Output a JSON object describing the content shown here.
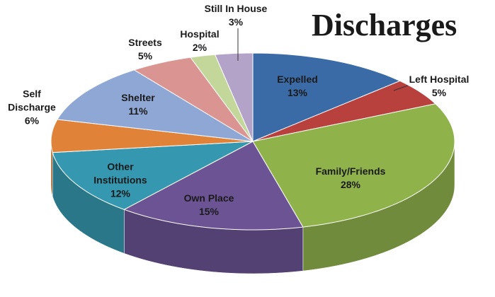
{
  "chart_data": {
    "type": "pie",
    "title": "Discharges",
    "categories": [
      "Expelled",
      "Left Hospital",
      "Family/Friends",
      "Own Place",
      "Other Institutions",
      "Self Discharge",
      "Shelter",
      "Streets",
      "Hospital",
      "Still In House"
    ],
    "values": [
      13,
      5,
      28,
      15,
      12,
      6,
      11,
      5,
      2,
      3
    ],
    "value_labels": [
      "13%",
      "5%",
      "28%",
      "15%",
      "12%",
      "6%",
      "11%",
      "5%",
      "2%",
      "3%"
    ],
    "colors": [
      "#3b6ba7",
      "#b8403d",
      "#8fb24b",
      "#6c5394",
      "#3698b0",
      "#e08238",
      "#8fa7d4",
      "#da9593",
      "#c4d79b",
      "#b4a3c8"
    ]
  }
}
